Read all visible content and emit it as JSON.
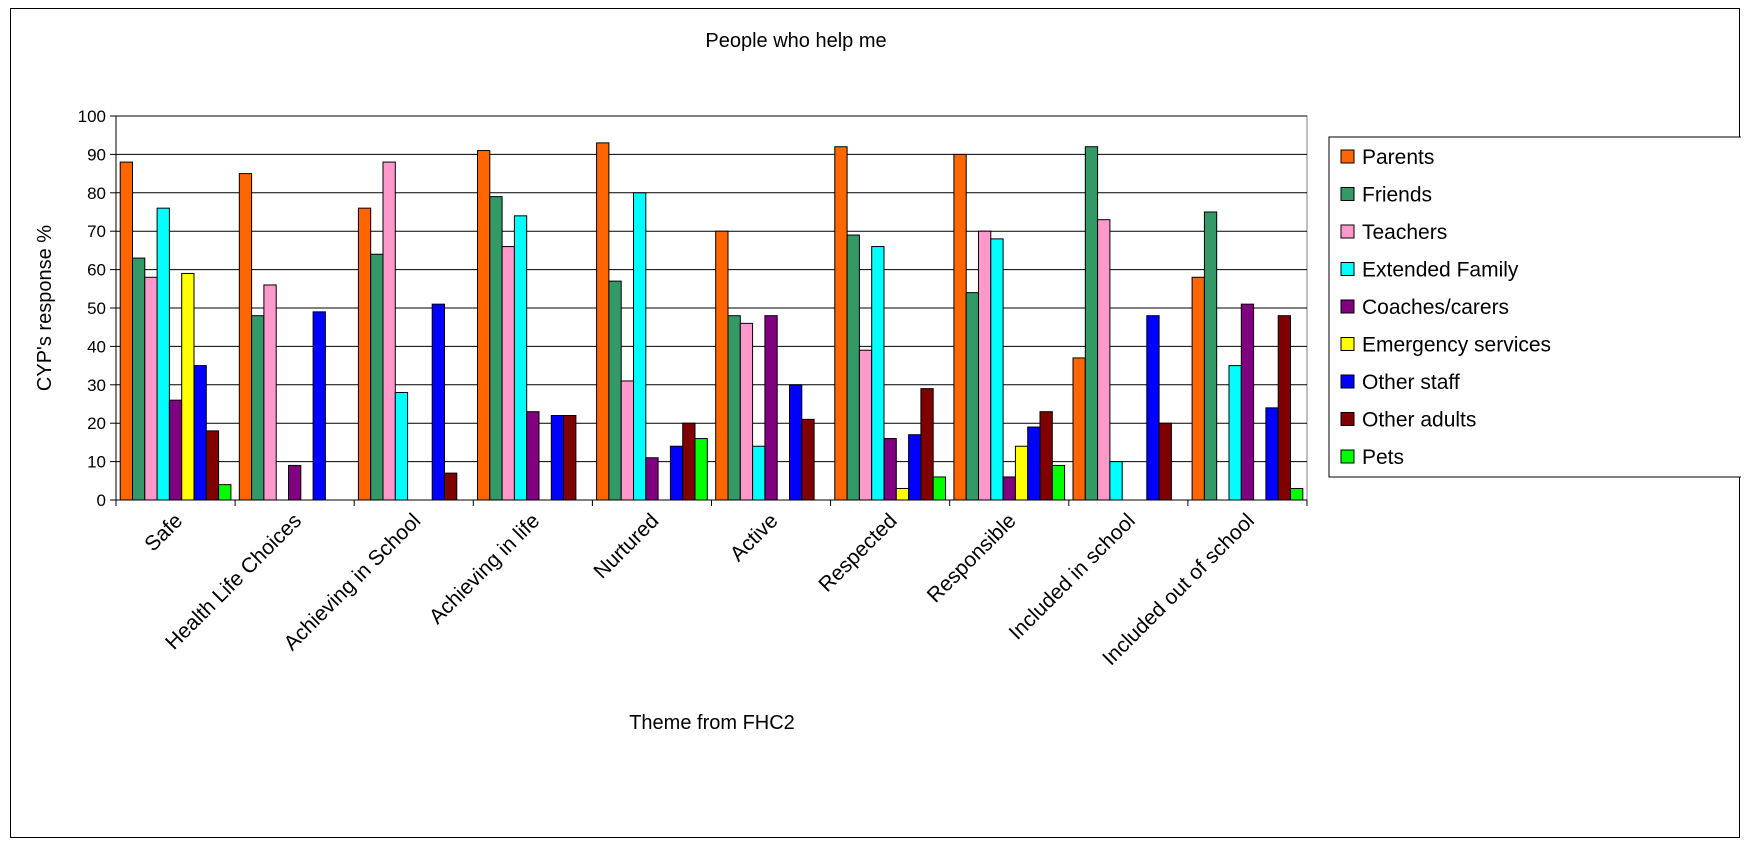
{
  "chart_data": {
    "type": "bar",
    "title": "People who help me",
    "xlabel": "Theme from FHC2",
    "ylabel": "CYP's response %",
    "ylim": [
      0,
      100
    ],
    "yticks": [
      0,
      10,
      20,
      30,
      40,
      50,
      60,
      70,
      80,
      90,
      100
    ],
    "grid": "horizontal",
    "legend": "right",
    "categories": [
      "Safe",
      "Health Life Choices",
      "Achieving in School",
      "Achieving in life",
      "Nurtured",
      "Active",
      "Respected",
      "Responsible",
      "Included in school",
      "Included out of school"
    ],
    "series": [
      {
        "name": "Parents",
        "color": "#ff6600",
        "values": [
          88,
          85,
          76,
          91,
          93,
          70,
          92,
          90,
          37,
          58
        ]
      },
      {
        "name": "Friends",
        "color": "#339966",
        "values": [
          63,
          48,
          64,
          79,
          57,
          48,
          69,
          54,
          92,
          75
        ]
      },
      {
        "name": "Teachers",
        "color": "#ff99cc",
        "values": [
          58,
          56,
          88,
          66,
          31,
          46,
          39,
          70,
          73,
          0
        ]
      },
      {
        "name": "Extended Family",
        "color": "#00ffff",
        "values": [
          76,
          0,
          28,
          74,
          80,
          14,
          66,
          68,
          10,
          35
        ]
      },
      {
        "name": "Coaches/carers",
        "color": "#800080",
        "values": [
          26,
          9,
          0,
          23,
          11,
          48,
          16,
          6,
          0,
          51
        ]
      },
      {
        "name": "Emergency services",
        "color": "#ffff00",
        "values": [
          59,
          0,
          0,
          0,
          0,
          0,
          3,
          14,
          0,
          0
        ]
      },
      {
        "name": "Other staff",
        "color": "#0000ff",
        "values": [
          35,
          49,
          51,
          22,
          14,
          30,
          17,
          19,
          48,
          24
        ]
      },
      {
        "name": "Other adults",
        "color": "#800000",
        "values": [
          18,
          0,
          7,
          22,
          20,
          21,
          29,
          23,
          20,
          48
        ]
      },
      {
        "name": "Pets",
        "color": "#00ff00",
        "values": [
          4,
          0,
          0,
          0,
          16,
          0,
          6,
          9,
          0,
          3
        ]
      }
    ]
  }
}
